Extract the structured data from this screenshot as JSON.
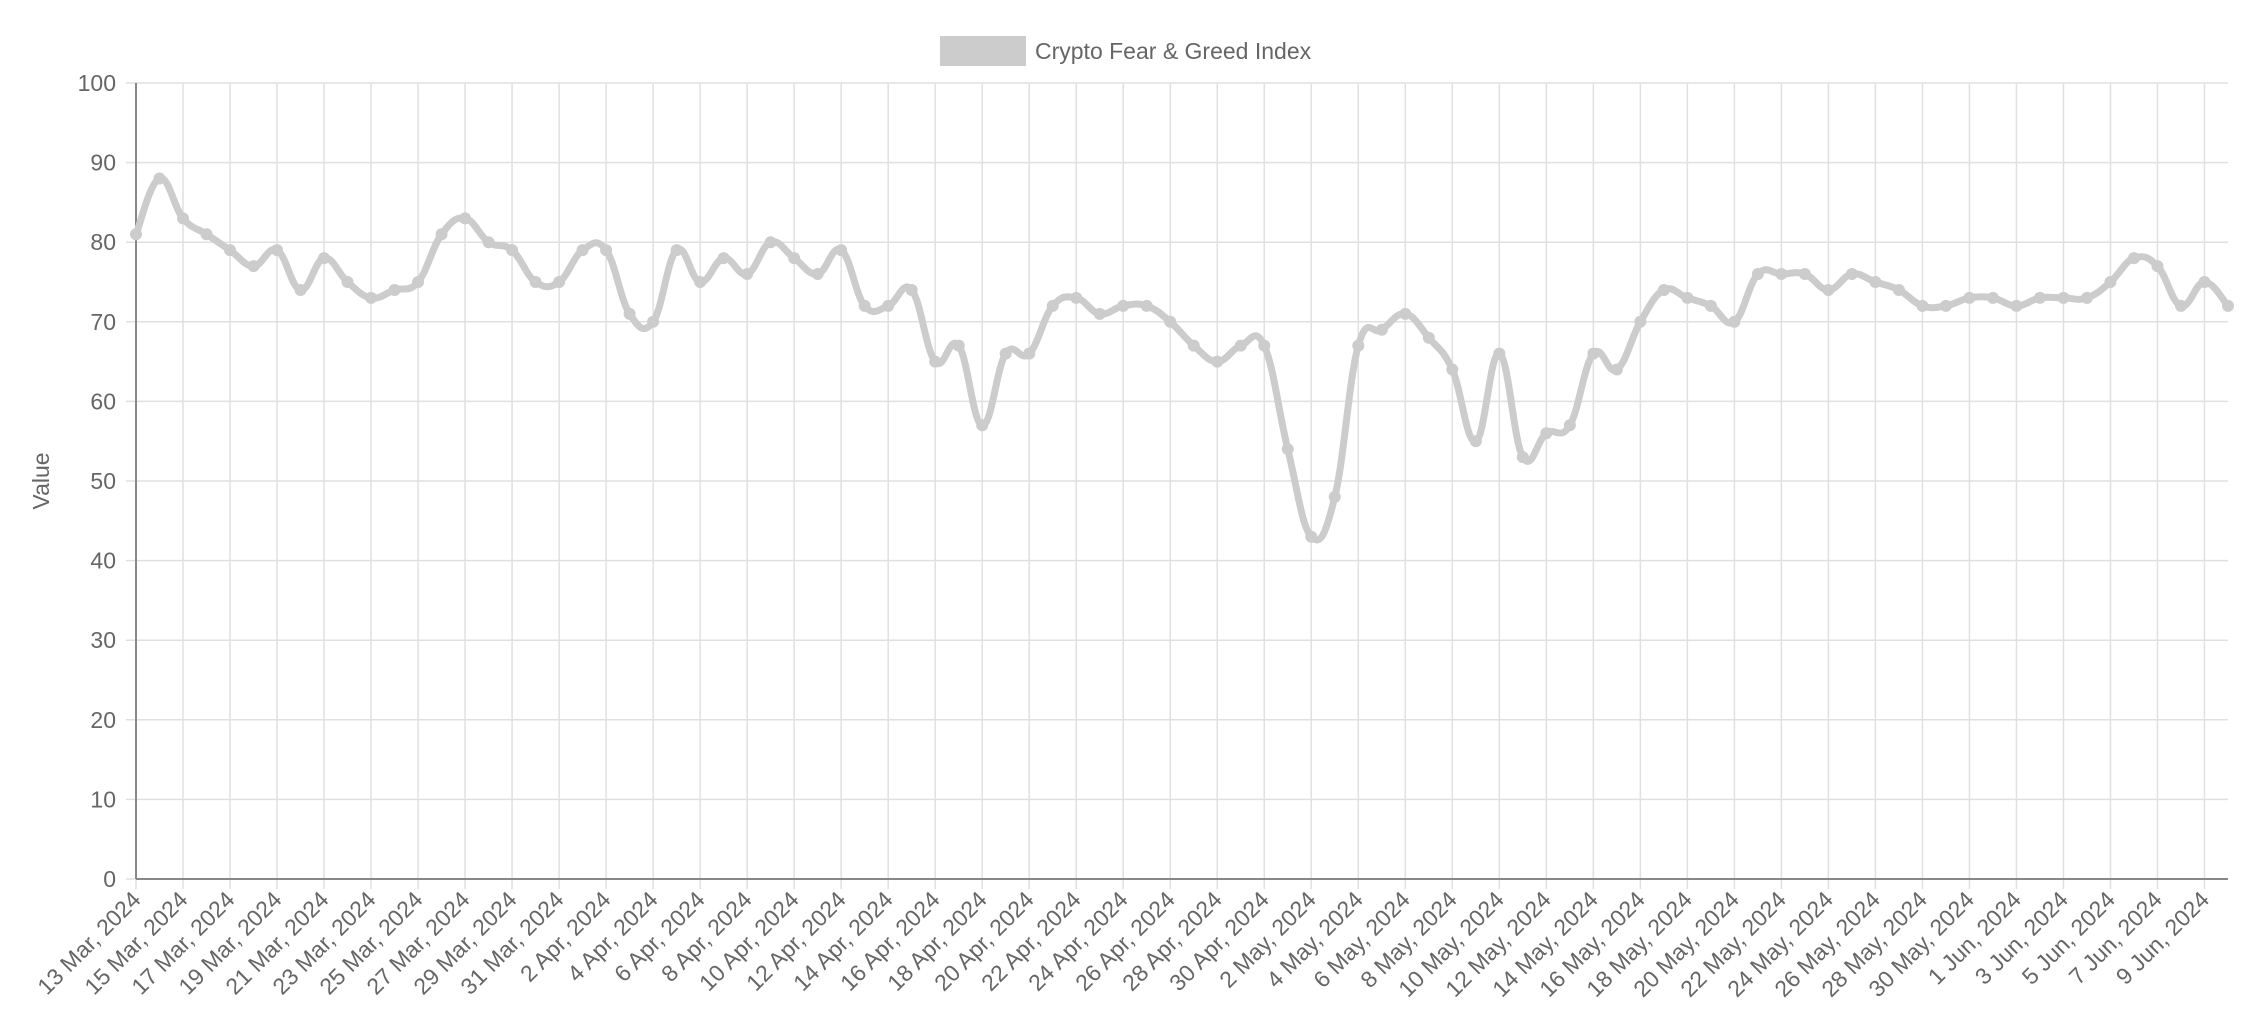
{
  "chart_data": {
    "type": "line",
    "legend": {
      "label": "Crypto Fear & Greed Index",
      "position": "top-center",
      "color": "#cccccc"
    },
    "ylabel": "Value",
    "ylim": [
      0,
      100
    ],
    "yticks": [
      0,
      10,
      20,
      30,
      40,
      50,
      60,
      70,
      80,
      90,
      100
    ],
    "grid": true,
    "line_color": "#cccccc",
    "grid_color": "#e0e0e0",
    "axis_color": "#888888",
    "x_tick_labels": [
      "13 Mar, 2024",
      "15 Mar, 2024",
      "17 Mar, 2024",
      "19 Mar, 2024",
      "21 Mar, 2024",
      "23 Mar, 2024",
      "25 Mar, 2024",
      "27 Mar, 2024",
      "29 Mar, 2024",
      "31 Mar, 2024",
      "2 Apr, 2024",
      "4 Apr, 2024",
      "6 Apr, 2024",
      "8 Apr, 2024",
      "10 Apr, 2024",
      "12 Apr, 2024",
      "14 Apr, 2024",
      "16 Apr, 2024",
      "18 Apr, 2024",
      "20 Apr, 2024",
      "22 Apr, 2024",
      "24 Apr, 2024",
      "26 Apr, 2024",
      "28 Apr, 2024",
      "30 Apr, 2024",
      "2 May, 2024",
      "4 May, 2024",
      "6 May, 2024",
      "8 May, 2024",
      "10 May, 2024",
      "12 May, 2024",
      "14 May, 2024",
      "16 May, 2024",
      "18 May, 2024",
      "20 May, 2024",
      "22 May, 2024",
      "24 May, 2024",
      "26 May, 2024",
      "28 May, 2024",
      "30 May, 2024",
      "1 Jun, 2024",
      "3 Jun, 2024",
      "5 Jun, 2024",
      "7 Jun, 2024",
      "9 Jun, 2024"
    ],
    "x_start": "13 Mar, 2024",
    "x_end": "10 Jun, 2024",
    "series": [
      {
        "name": "Crypto Fear & Greed Index",
        "values": [
          81,
          88,
          83,
          81,
          79,
          77,
          79,
          74,
          78,
          75,
          73,
          74,
          75,
          81,
          83,
          80,
          79,
          75,
          75,
          79,
          79,
          71,
          70,
          79,
          75,
          78,
          76,
          80,
          78,
          76,
          79,
          72,
          72,
          74,
          65,
          67,
          57,
          66,
          66,
          72,
          73,
          71,
          72,
          72,
          70,
          67,
          65,
          67,
          67,
          54,
          43,
          48,
          67,
          69,
          71,
          68,
          64,
          55,
          66,
          53,
          56,
          57,
          66,
          64,
          70,
          74,
          73,
          72,
          70,
          76,
          76,
          76,
          74,
          76,
          75,
          74,
          72,
          72,
          73,
          73,
          72,
          73,
          73,
          73,
          75,
          78,
          77,
          72,
          75,
          72
        ]
      }
    ]
  }
}
